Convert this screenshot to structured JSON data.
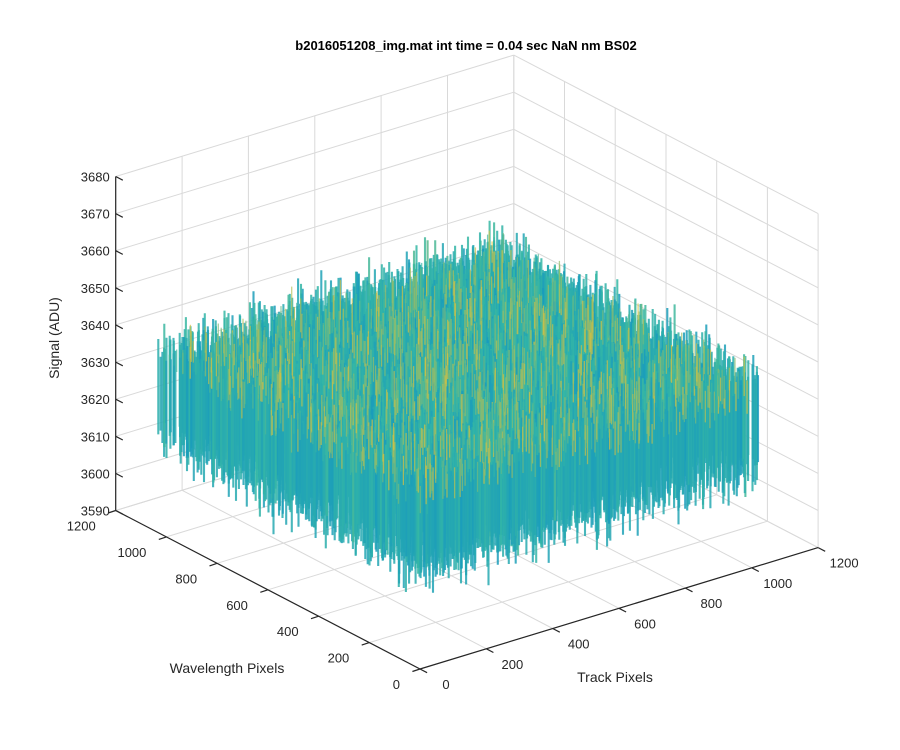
{
  "chart_data": {
    "type": "surface",
    "title": "b2016051208_img.mat int time = 0.04 sec  NaN nm BS02",
    "xlabel": "Track Pixels",
    "ylabel": "Wavelength Pixels",
    "zlabel": "Signal (ADU)",
    "xlim": [
      0,
      1200
    ],
    "ylim": [
      0,
      1200
    ],
    "zlim": [
      3590,
      3680
    ],
    "x_ticks": [
      "0",
      "200",
      "400",
      "600",
      "800",
      "1000",
      "1200"
    ],
    "y_ticks": [
      "0",
      "200",
      "400",
      "600",
      "800",
      "1000",
      "1200"
    ],
    "z_ticks": [
      "3590",
      "3600",
      "3610",
      "3620",
      "3630",
      "3640",
      "3650",
      "3660",
      "3670",
      "3680"
    ],
    "data_extent": {
      "x": [
        0,
        1024
      ],
      "y": [
        0,
        1024
      ]
    },
    "mean_signal": 3628,
    "signal_range": [
      3595,
      3665
    ],
    "grid": true,
    "colormap": "parula"
  },
  "colors": {
    "low": "#0d8fc7",
    "mid": "#35b7a5",
    "high": "#e0c23a",
    "grid": "#d9d9d9",
    "axis": "#262626"
  }
}
